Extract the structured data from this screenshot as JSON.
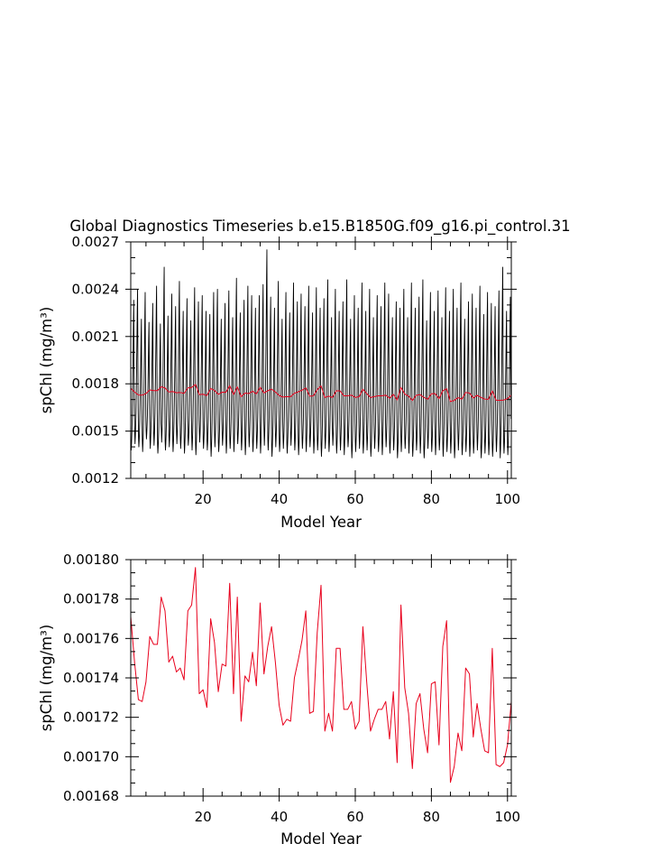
{
  "title": "Global Diagnostics Timeseries b.e15.B1850G.f09_g16.pi_control.31",
  "colors": {
    "monthly": "#000000",
    "annual": "#e8001c",
    "axis": "#000000",
    "background": "#ffffff"
  },
  "chart_data": [
    {
      "type": "line",
      "title": "Global Diagnostics Timeseries b.e15.B1850G.f09_g16.pi_control.31",
      "xlabel": "Model Year",
      "ylabel": "spChl (mg/m³)",
      "xlim": [
        1,
        101
      ],
      "ylim": [
        0.0012,
        0.0027
      ],
      "xticks": [
        20,
        40,
        60,
        80,
        100
      ],
      "xtick_labels": [
        "20",
        "40",
        "60",
        "80",
        "100"
      ],
      "yticks": [
        0.0012,
        0.0015,
        0.0018,
        0.0021,
        0.0024,
        0.0027
      ],
      "ytick_labels": [
        "0.0012",
        "0.0015",
        "0.0018",
        "0.0021",
        "0.0024",
        "0.0027"
      ],
      "grid": false,
      "series": [
        {
          "color": "#000000",
          "style": "monthly seasonal cycle",
          "x_start": 1.04,
          "x_step": 0.0833,
          "seasonal_min": [
            0.00148,
            0.00142,
            0.00146,
            0.00152,
            0.0016,
            0.00172,
            0.00186,
            0.002,
            0.00218,
            0.0023,
            0.0019,
            0.00162
          ],
          "peak_maxima_by_year": [
            0.00233,
            0.0024,
            0.00221,
            0.00238,
            0.00219,
            0.00231,
            0.00242,
            0.00218,
            0.00254,
            0.00223,
            0.00237,
            0.00229,
            0.00245,
            0.00226,
            0.00234,
            0.0022,
            0.00241,
            0.00232,
            0.00236,
            0.00226,
            0.00224,
            0.00238,
            0.0024,
            0.00221,
            0.00231,
            0.00239,
            0.00222,
            0.00247,
            0.00225,
            0.00233,
            0.00242,
            0.00236,
            0.00228,
            0.00236,
            0.00243,
            0.00265,
            0.00235,
            0.00228,
            0.00245,
            0.00221,
            0.00238,
            0.00225,
            0.00244,
            0.00232,
            0.00237,
            0.00229,
            0.00242,
            0.00225,
            0.00241,
            0.00228,
            0.00234,
            0.00246,
            0.00222,
            0.0024,
            0.00226,
            0.00232,
            0.00246,
            0.00221,
            0.00236,
            0.00228,
            0.00244,
            0.00226,
            0.0024,
            0.00222,
            0.00236,
            0.00229,
            0.00244,
            0.00237,
            0.00222,
            0.00232,
            0.00228,
            0.0024,
            0.00222,
            0.00244,
            0.00228,
            0.00235,
            0.00246,
            0.0022,
            0.00238,
            0.00226,
            0.00239,
            0.00222,
            0.00241,
            0.00226,
            0.0024,
            0.00228,
            0.00244,
            0.00221,
            0.00232,
            0.00237,
            0.00228,
            0.00242,
            0.00224,
            0.00238,
            0.00231,
            0.00229,
            0.00239,
            0.00254,
            0.00226,
            0.00235
          ],
          "trough_minima_by_year": [
            0.00138,
            0.00142,
            0.0014,
            0.00137,
            0.00145,
            0.00139,
            0.00141,
            0.00136,
            0.00143,
            0.00138,
            0.0014,
            0.00137,
            0.00142,
            0.00139,
            0.00136,
            0.00141,
            0.00138,
            0.00135,
            0.00143,
            0.00139,
            0.00138,
            0.00134,
            0.0014,
            0.00137,
            0.00141,
            0.00136,
            0.00139,
            0.00137,
            0.00142,
            0.00138,
            0.00135,
            0.0014,
            0.00137,
            0.00139,
            0.00136,
            0.00141,
            0.00138,
            0.00134,
            0.0014,
            0.00137,
            0.00139,
            0.00136,
            0.00141,
            0.00138,
            0.00135,
            0.00139,
            0.00137,
            0.0014,
            0.00136,
            0.00138,
            0.00134,
            0.00139,
            0.00137,
            0.00141,
            0.00136,
            0.00138,
            0.00135,
            0.0014,
            0.00133,
            0.00137,
            0.00139,
            0.00136,
            0.00138,
            0.00134,
            0.00139,
            0.00137,
            0.00135,
            0.0014,
            0.00136,
            0.00138,
            0.00133,
            0.00137,
            0.00139,
            0.00136,
            0.00134,
            0.00138,
            0.00136,
            0.00133,
            0.00139,
            0.00137,
            0.00135,
            0.00138,
            0.00134,
            0.00137,
            0.00136,
            0.00133,
            0.00138,
            0.00135,
            0.00137,
            0.00134,
            0.00136,
            0.00138,
            0.00133,
            0.00136,
            0.00135,
            0.00134,
            0.00137,
            0.00133,
            0.00136,
            0.00135
          ]
        },
        {
          "color": "#e8001c",
          "style": "annual mean",
          "x": [
            1,
            2,
            3,
            4,
            5,
            6,
            7,
            8,
            9,
            10,
            11,
            12,
            13,
            14,
            15,
            16,
            17,
            18,
            19,
            20,
            21,
            22,
            23,
            24,
            25,
            26,
            27,
            28,
            29,
            30,
            31,
            32,
            33,
            34,
            35,
            36,
            37,
            38,
            39,
            40,
            41,
            42,
            43,
            44,
            45,
            46,
            47,
            48,
            49,
            50,
            51,
            52,
            53,
            54,
            55,
            56,
            57,
            58,
            59,
            60,
            61,
            62,
            63,
            64,
            65,
            66,
            67,
            68,
            69,
            70,
            71,
            72,
            73,
            74,
            75,
            76,
            77,
            78,
            79,
            80,
            81,
            82,
            83,
            84,
            85,
            86,
            87,
            88,
            89,
            90,
            91,
            92,
            93,
            94,
            95,
            96,
            97,
            98,
            99,
            100,
            101
          ],
          "values": [
            0.001771,
            0.001748,
            0.001729,
            0.001728,
            0.001738,
            0.001761,
            0.001757,
            0.001757,
            0.001781,
            0.001774,
            0.001748,
            0.001751,
            0.001743,
            0.001745,
            0.001739,
            0.001774,
            0.001777,
            0.001796,
            0.001732,
            0.001734,
            0.001725,
            0.00177,
            0.001758,
            0.001733,
            0.001747,
            0.001746,
            0.001788,
            0.001732,
            0.001781,
            0.001718,
            0.001741,
            0.001738,
            0.001753,
            0.001736,
            0.001778,
            0.001742,
            0.001756,
            0.001766,
            0.001748,
            0.001726,
            0.001716,
            0.001719,
            0.001718,
            0.00174,
            0.001749,
            0.001759,
            0.001774,
            0.001722,
            0.001723,
            0.001763,
            0.001787,
            0.001713,
            0.001722,
            0.001713,
            0.001755,
            0.001755,
            0.001724,
            0.001724,
            0.001728,
            0.001714,
            0.001718,
            0.001766,
            0.001738,
            0.001713,
            0.001719,
            0.001724,
            0.001724,
            0.001728,
            0.001709,
            0.001733,
            0.001697,
            0.001777,
            0.001735,
            0.001722,
            0.001694,
            0.001727,
            0.001732,
            0.001714,
            0.001702,
            0.001737,
            0.001738,
            0.001706,
            0.001756,
            0.001769,
            0.001687,
            0.001695,
            0.001712,
            0.001703,
            0.001745,
            0.001742,
            0.00171,
            0.001727,
            0.001714,
            0.001703,
            0.001702,
            0.001755,
            0.001696,
            0.001695,
            0.001697,
            0.001706,
            0.001728
          ]
        }
      ]
    },
    {
      "type": "line",
      "xlabel": "Model Year",
      "ylabel": "spChl (mg/m³)",
      "xlim": [
        1,
        101
      ],
      "ylim": [
        0.00168,
        0.0018
      ],
      "xticks": [
        20,
        40,
        60,
        80,
        100
      ],
      "xtick_labels": [
        "20",
        "40",
        "60",
        "80",
        "100"
      ],
      "yticks": [
        0.00168,
        0.0017,
        0.00172,
        0.00174,
        0.00176,
        0.00178,
        0.0018
      ],
      "ytick_labels": [
        "0.00168",
        "0.00170",
        "0.00172",
        "0.00174",
        "0.00176",
        "0.00178",
        "0.00180"
      ],
      "grid": false,
      "series": [
        {
          "color": "#e8001c",
          "style": "annual mean",
          "x": [
            1,
            2,
            3,
            4,
            5,
            6,
            7,
            8,
            9,
            10,
            11,
            12,
            13,
            14,
            15,
            16,
            17,
            18,
            19,
            20,
            21,
            22,
            23,
            24,
            25,
            26,
            27,
            28,
            29,
            30,
            31,
            32,
            33,
            34,
            35,
            36,
            37,
            38,
            39,
            40,
            41,
            42,
            43,
            44,
            45,
            46,
            47,
            48,
            49,
            50,
            51,
            52,
            53,
            54,
            55,
            56,
            57,
            58,
            59,
            60,
            61,
            62,
            63,
            64,
            65,
            66,
            67,
            68,
            69,
            70,
            71,
            72,
            73,
            74,
            75,
            76,
            77,
            78,
            79,
            80,
            81,
            82,
            83,
            84,
            85,
            86,
            87,
            88,
            89,
            90,
            91,
            92,
            93,
            94,
            95,
            96,
            97,
            98,
            99,
            100,
            101
          ],
          "values": [
            0.001771,
            0.001748,
            0.001729,
            0.001728,
            0.001738,
            0.001761,
            0.001757,
            0.001757,
            0.001781,
            0.001774,
            0.001748,
            0.001751,
            0.001743,
            0.001745,
            0.001739,
            0.001774,
            0.001777,
            0.001796,
            0.001732,
            0.001734,
            0.001725,
            0.00177,
            0.001758,
            0.001733,
            0.001747,
            0.001746,
            0.001788,
            0.001732,
            0.001781,
            0.001718,
            0.001741,
            0.001738,
            0.001753,
            0.001736,
            0.001778,
            0.001742,
            0.001756,
            0.001766,
            0.001748,
            0.001726,
            0.001716,
            0.001719,
            0.001718,
            0.00174,
            0.001749,
            0.001759,
            0.001774,
            0.001722,
            0.001723,
            0.001763,
            0.001787,
            0.001713,
            0.001722,
            0.001713,
            0.001755,
            0.001755,
            0.001724,
            0.001724,
            0.001728,
            0.001714,
            0.001718,
            0.001766,
            0.001738,
            0.001713,
            0.001719,
            0.001724,
            0.001724,
            0.001728,
            0.001709,
            0.001733,
            0.001697,
            0.001777,
            0.001735,
            0.001722,
            0.001694,
            0.001727,
            0.001732,
            0.001714,
            0.001702,
            0.001737,
            0.001738,
            0.001706,
            0.001756,
            0.001769,
            0.001687,
            0.001695,
            0.001712,
            0.001703,
            0.001745,
            0.001742,
            0.00171,
            0.001727,
            0.001714,
            0.001703,
            0.001702,
            0.001755,
            0.001696,
            0.001695,
            0.001697,
            0.001706,
            0.001728
          ]
        }
      ]
    }
  ]
}
